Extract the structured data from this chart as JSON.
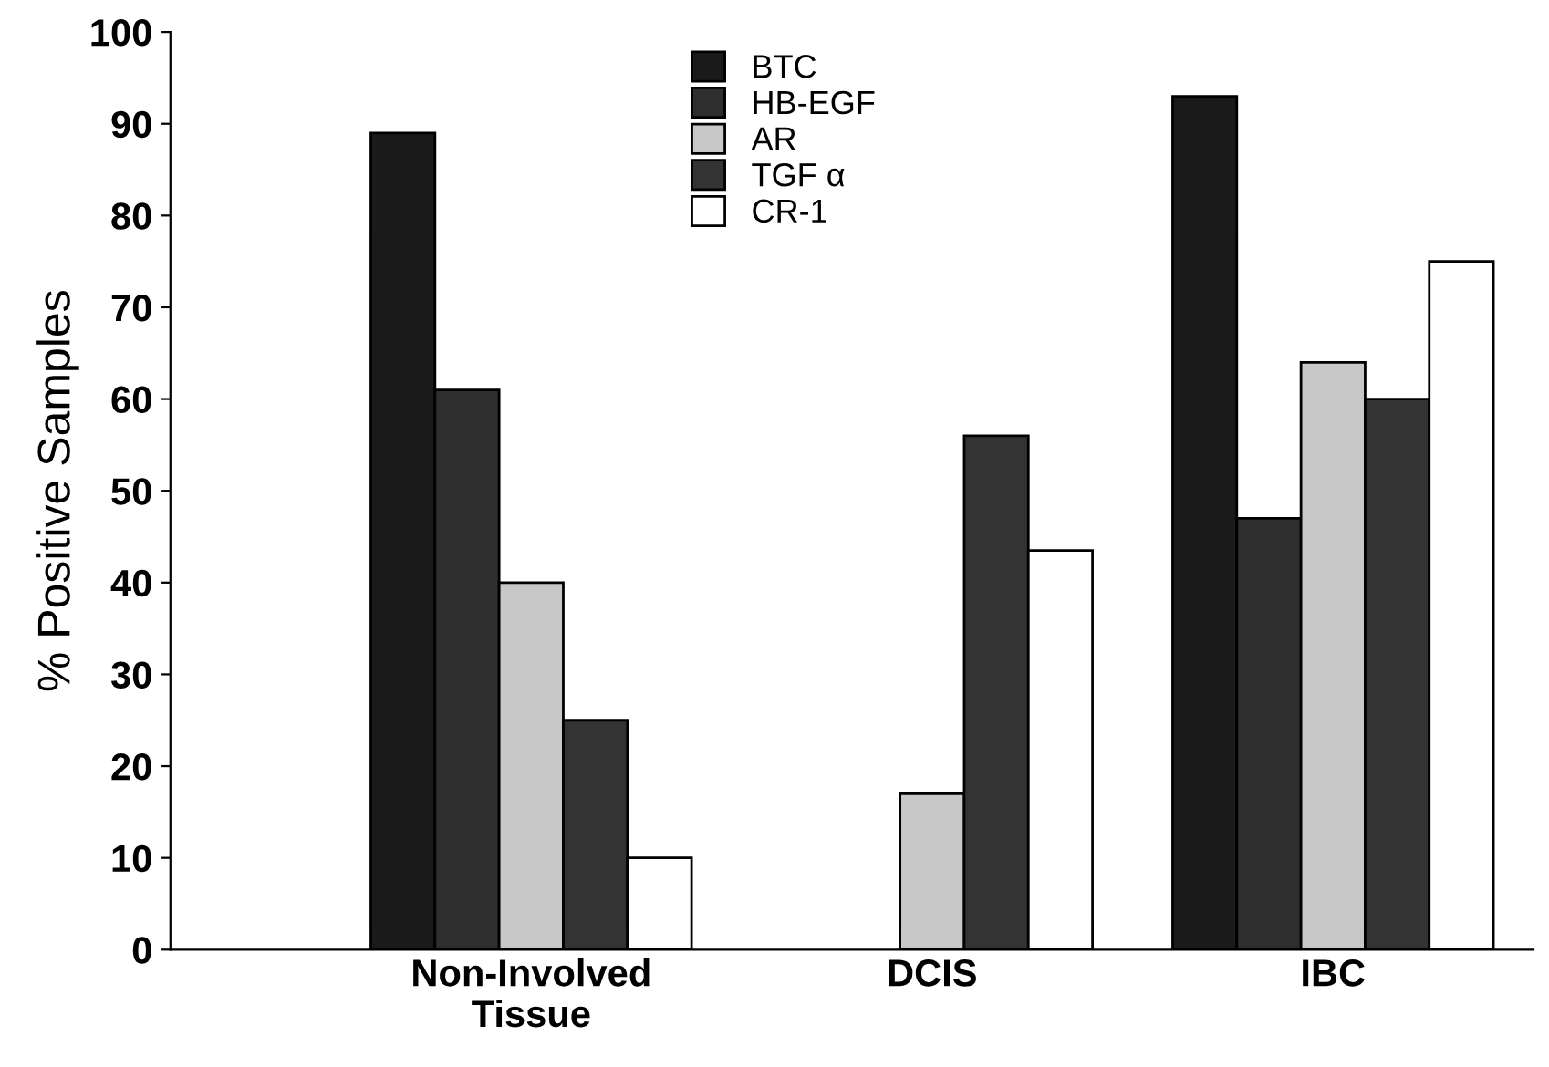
{
  "chart_data": {
    "type": "bar",
    "ylabel": "% Positive Samples",
    "categories": [
      "Non-Involved\nTissue",
      "DCIS",
      "IBC"
    ],
    "series": [
      {
        "name": "BTC",
        "color": "#1a1a1a",
        "values": [
          89,
          0,
          93
        ]
      },
      {
        "name": "HB-EGF",
        "color": "#2e2e2e",
        "values": [
          61,
          0,
          47
        ]
      },
      {
        "name": "AR",
        "color": "#c8c8c8",
        "values": [
          40,
          17,
          64
        ]
      },
      {
        "name": "TGF α",
        "color": "#333333",
        "values": [
          25,
          56,
          60
        ]
      },
      {
        "name": "CR-1",
        "color": "#ffffff",
        "values": [
          10,
          43.5,
          75
        ]
      }
    ],
    "ylim": [
      0,
      100
    ],
    "yticks": [
      0,
      10,
      20,
      30,
      40,
      50,
      60,
      70,
      80,
      90,
      100
    ],
    "grid": false,
    "legend": "top"
  }
}
